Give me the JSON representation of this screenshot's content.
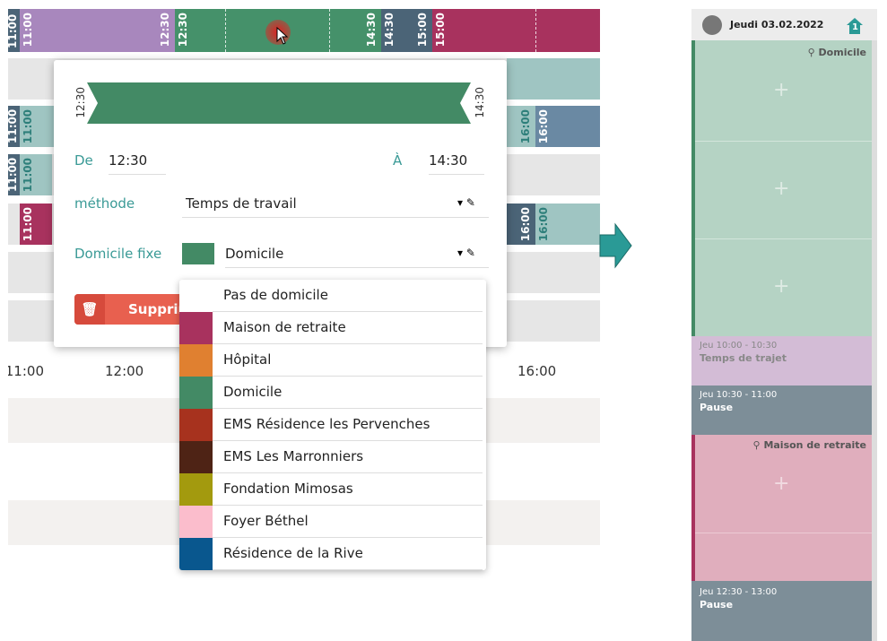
{
  "timeline": {
    "top_bar": [
      "11:00",
      "11:00",
      "12:30",
      "12:30",
      "14:30",
      "14:30",
      "15:00",
      "15:00"
    ],
    "row2": [
      "11:00",
      "11:00",
      "16:00",
      "16:00"
    ],
    "row3": [
      "11:00",
      "11:00"
    ],
    "row4": [
      "11:00",
      "16:00",
      "16:00"
    ],
    "axis": [
      "11:00",
      "12:00",
      "16:00"
    ]
  },
  "popup": {
    "start_label": "12:30",
    "end_label": "14:30",
    "from_label": "De",
    "from_value": "12:30",
    "to_label": "À",
    "to_value": "14:30",
    "method_label": "méthode",
    "method_value": "Temps de travail",
    "home_label": "Domicile fixe",
    "home_value": "Domicile",
    "home_color": "#438a65",
    "delete_button": "Supprimer"
  },
  "dropdown": {
    "options": [
      {
        "label": "Pas de domicile"
      },
      {
        "label": "Maison de retraite",
        "color": "#a8325e"
      },
      {
        "label": "Hôpital",
        "color": "#e08030"
      },
      {
        "label": "Domicile",
        "color": "#438a65"
      },
      {
        "label": "EMS Résidence les Pervenches",
        "color": "#a7321e"
      },
      {
        "label": "EMS Les Marronniers",
        "color": "#4e2315"
      },
      {
        "label": "Fondation Mimosas",
        "color": "#a39a0e"
      },
      {
        "label": "Foyer Béthel",
        "color": "#fbbdcc"
      },
      {
        "label": "Résidence de la Rive",
        "color": "#09578e"
      }
    ]
  },
  "day_panel": {
    "title": "Jeudi 03.02.2022",
    "badge": "1",
    "block1_place": "Domicile",
    "block2_time": "Jeu 10:00 - 10:30",
    "block2_label": "Temps de trajet",
    "block3_time": "Jeu 10:30 - 11:00",
    "block3_label": "Pause",
    "block4_place": "Maison de retraite",
    "block5_time": "Jeu 12:30 - 13:00",
    "block5_label": "Pause"
  }
}
